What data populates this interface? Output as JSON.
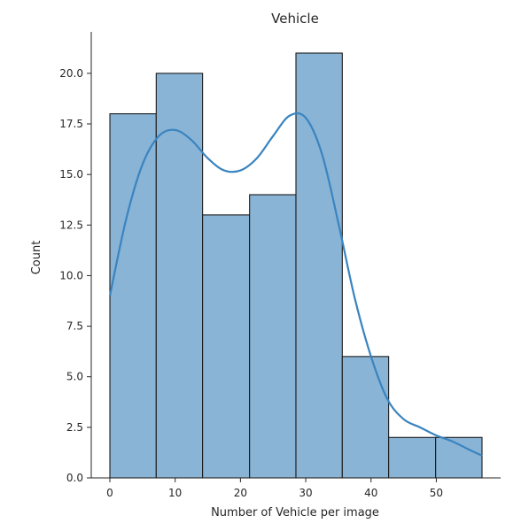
{
  "chart_data": {
    "type": "bar",
    "subtype": "histogram with kde",
    "title": "Vehicle",
    "xlabel": "Number of Vehicle per image",
    "ylabel": "Count",
    "bins": [
      {
        "x0": 0.0,
        "x1": 7.1,
        "count": 18
      },
      {
        "x0": 7.1,
        "x1": 14.2,
        "count": 20
      },
      {
        "x0": 14.2,
        "x1": 21.4,
        "count": 13
      },
      {
        "x0": 21.4,
        "x1": 28.5,
        "count": 14
      },
      {
        "x0": 28.5,
        "x1": 35.6,
        "count": 21
      },
      {
        "x0": 35.6,
        "x1": 42.7,
        "count": 6
      },
      {
        "x0": 42.7,
        "x1": 49.9,
        "count": 2
      },
      {
        "x0": 49.9,
        "x1": 57.0,
        "count": 2
      }
    ],
    "kde": {
      "x": [
        0,
        2.5,
        5,
        7.5,
        10,
        12.5,
        15,
        17.5,
        20,
        22.5,
        25,
        27.5,
        30,
        32.5,
        35,
        37.5,
        40,
        42.5,
        45,
        47.5,
        50,
        52.5,
        55,
        57
      ],
      "y": [
        9.0,
        12.8,
        15.5,
        16.9,
        17.2,
        16.7,
        15.8,
        15.2,
        15.2,
        15.8,
        16.9,
        17.9,
        17.8,
        16.0,
        12.6,
        8.9,
        6.0,
        3.9,
        2.9,
        2.5,
        2.1,
        1.8,
        1.4,
        1.1
      ]
    },
    "xlim": [
      -2.85,
      59.85
    ],
    "ylim": [
      0,
      22.05
    ],
    "xticks": [
      0,
      10,
      20,
      30,
      40,
      50
    ],
    "xtick_labels": [
      "0",
      "10",
      "20",
      "30",
      "40",
      "50"
    ],
    "yticks": [
      0,
      2.5,
      5,
      7.5,
      10,
      12.5,
      15,
      17.5,
      20
    ],
    "ytick_labels": [
      "0.0",
      "2.5",
      "5.0",
      "7.5",
      "10.0",
      "12.5",
      "15.0",
      "17.5",
      "20.0"
    ],
    "grid": false,
    "colors": {
      "bar_fill": "#89b4d6",
      "bar_edge": "#1a1a1a",
      "kde_line": "#3a84c0"
    }
  }
}
